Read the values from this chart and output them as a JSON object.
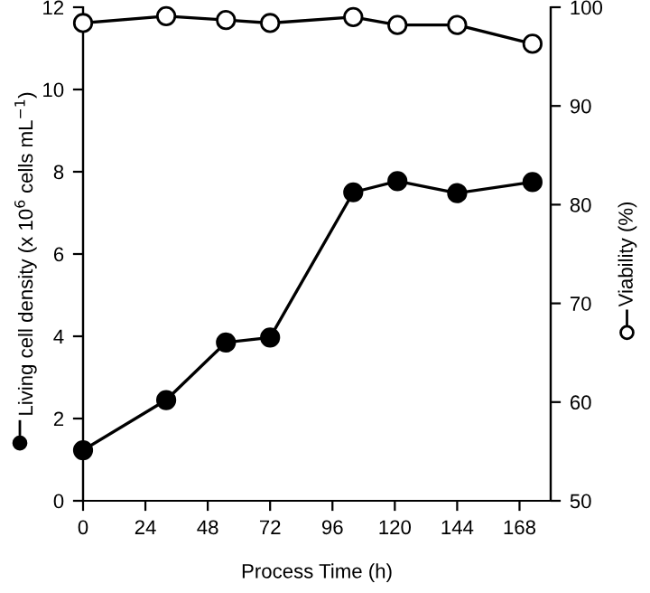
{
  "chart_data": {
    "type": "line",
    "xlabel": "Process Time (h)",
    "ylabel": "Living cell density (x 10$^{6}$ cells mL$^{−1}$)",
    "y2label": "Viability (%)",
    "x": [
      0,
      32,
      55,
      72,
      104,
      121,
      144,
      173
    ],
    "series": [
      {
        "color": "#000000",
        "marker": "circle",
        "values": [
          1.23,
          2.45,
          3.85,
          3.97,
          7.5,
          7.77,
          7.48,
          7.75
        ]
      },
      {
        "color": "#000000",
        "marker": "circle",
        "axis": "y2",
        "values": [
          98.4,
          99.1,
          98.7,
          98.4,
          99.0,
          98.2,
          98.2,
          96.3
        ]
      }
    ],
    "xlim": [
      0,
      180
    ],
    "xticks": [
      0,
      24,
      48,
      72,
      96,
      120,
      144,
      168
    ],
    "ylim": [
      0,
      12
    ],
    "yticks": [
      0,
      2,
      4,
      6,
      8,
      10,
      12
    ],
    "y2lim": [
      50,
      100
    ],
    "y2ticks": [
      50,
      60,
      70,
      80,
      90,
      100
    ],
    "grid": false,
    "legend": false,
    "line_style": "solid"
  }
}
